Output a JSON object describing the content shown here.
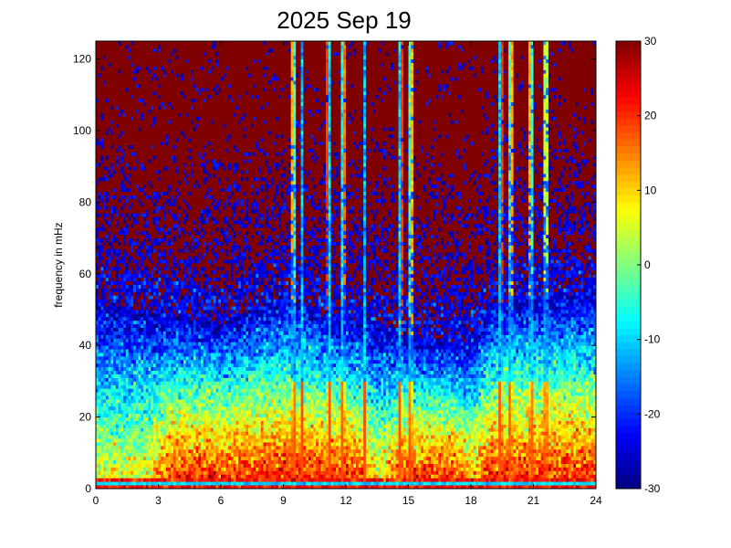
{
  "chart_data": {
    "type": "heatmap",
    "title": "2025 Sep 19",
    "xlabel": "",
    "ylabel": "frequency in mHz",
    "xlim": [
      0,
      24
    ],
    "ylim": [
      0,
      125
    ],
    "x_ticks": [
      0,
      3,
      6,
      9,
      12,
      15,
      18,
      21,
      24
    ],
    "x_tick_labels": [
      "0",
      "3",
      "6",
      "9",
      "12",
      "15",
      "18",
      "21",
      "24"
    ],
    "y_ticks": [
      0,
      20,
      40,
      60,
      80,
      100,
      120
    ],
    "y_tick_labels": [
      "0",
      "20",
      "40",
      "60",
      "80",
      "100",
      "120"
    ],
    "colorbar": {
      "range": [
        -30,
        30
      ],
      "ticks": [
        -30,
        -20,
        -10,
        0,
        10,
        20,
        30
      ],
      "tick_labels": [
        "-30",
        "-20",
        "-10",
        "0",
        "10",
        "20",
        "30"
      ],
      "colormap": "jet"
    },
    "grid": false,
    "x_bins": 200,
    "y_bins": 125,
    "features": {
      "hf_baseline_level": 30,
      "lf_band_level": 22,
      "noise_floor_boundary_mHz": {
        "hours": [
          0,
          6,
          9,
          11,
          14,
          18,
          19,
          24
        ],
        "mHz": [
          52,
          46,
          54,
          48,
          44,
          40,
          52,
          55
        ]
      },
      "active_periods_hours": [
        [
          4,
          10.5
        ],
        [
          11.5,
          12.2
        ],
        [
          15,
          17
        ],
        [
          19,
          24
        ]
      ],
      "vertical_streaks_hours": [
        9.5,
        9.9,
        11.2,
        11.85,
        12.9,
        14.6,
        15.1,
        19.4,
        19.9,
        20.9,
        21.6
      ],
      "low_freq_stripe_mHz": 1.5
    }
  }
}
